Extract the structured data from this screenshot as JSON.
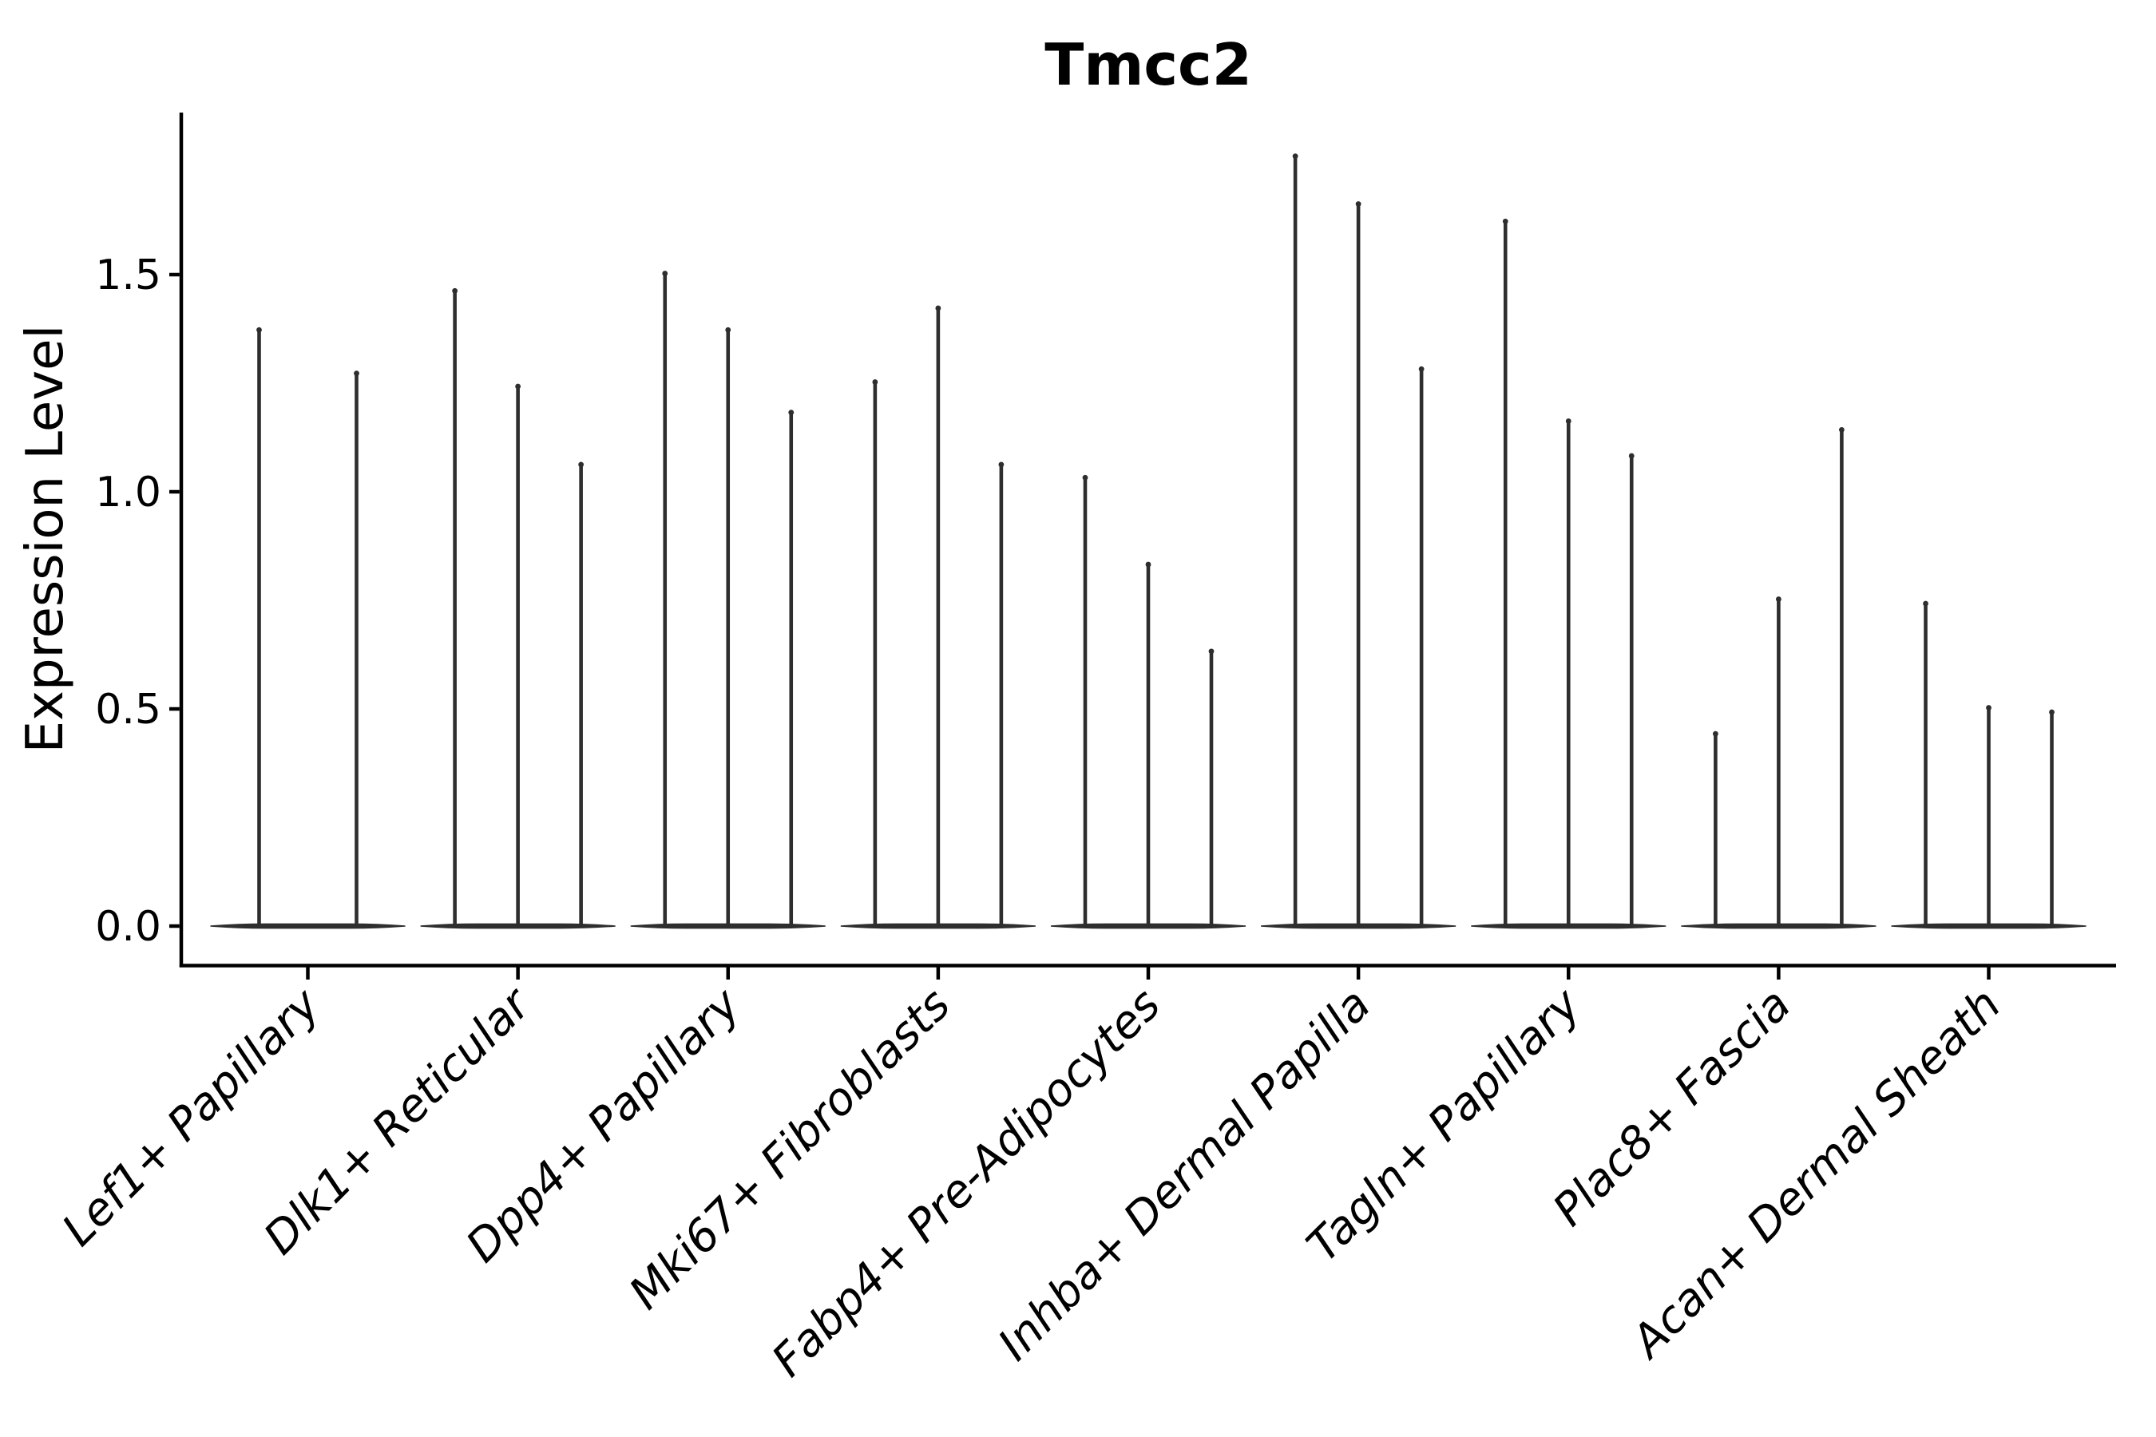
{
  "title": "Tmcc2",
  "ylabel": "Expression Level",
  "chart_data": {
    "type": "violin",
    "title": "Tmcc2",
    "xlabel": "",
    "ylabel": "Expression Level",
    "ylim": [
      0.0,
      1.87
    ],
    "yticks": [
      0.0,
      0.5,
      1.0,
      1.5
    ],
    "ytick_labels": [
      "0.0",
      "0.5",
      "1.0",
      "1.5"
    ],
    "grid": false,
    "legend": "none",
    "x_label_rotation_deg": 45,
    "x_label_style": "italic",
    "violin_color": "#2e2e2e",
    "axis_color": "#000000",
    "background_color": "#ffffff",
    "violin_shape_note": "each violin is a near-flat wide base at expression 0 with a thin spike rising to its maximum expression value",
    "categories": [
      {
        "label": "Lef1+ Papillary",
        "violin_max_values": [
          1.38,
          1.28
        ]
      },
      {
        "label": "Dlk1+ Reticular",
        "violin_max_values": [
          1.47,
          1.25,
          1.07
        ]
      },
      {
        "label": "Dpp4+ Papillary",
        "violin_max_values": [
          1.51,
          1.38,
          1.19
        ]
      },
      {
        "label": "Mki67+ Fibroblasts",
        "violin_max_values": [
          1.26,
          1.43,
          1.07
        ]
      },
      {
        "label": "Fabp4+ Pre-Adipocytes",
        "violin_max_values": [
          1.04,
          0.84,
          0.64
        ]
      },
      {
        "label": "Inhba+ Dermal Papilla",
        "violin_max_values": [
          1.78,
          1.67,
          1.29
        ]
      },
      {
        "label": "Tagln+ Papillary",
        "violin_max_values": [
          1.63,
          1.17,
          1.09
        ]
      },
      {
        "label": "Plac8+ Fascia",
        "violin_max_values": [
          0.45,
          0.76,
          1.15
        ]
      },
      {
        "label": "Acan+ Dermal Sheath",
        "violin_max_values": [
          0.75,
          0.51,
          0.5
        ]
      }
    ],
    "baseline_value": 0.0
  }
}
